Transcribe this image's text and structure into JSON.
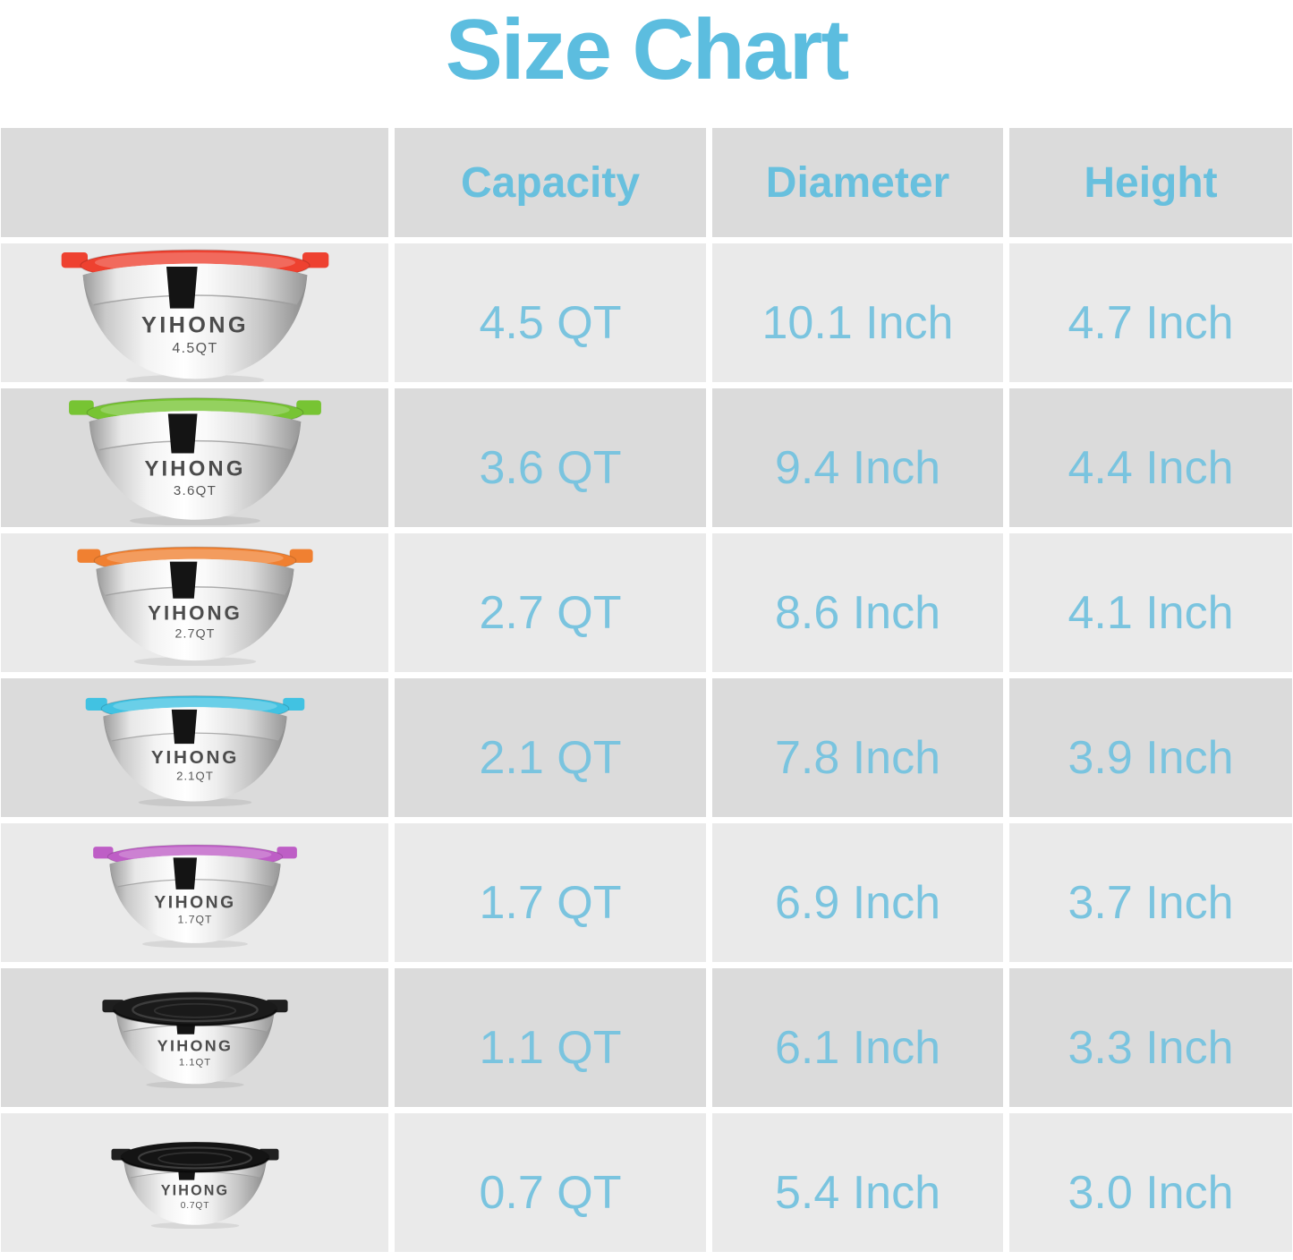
{
  "title": "Size Chart",
  "colors": {
    "accent_blue": "#6AC0DF",
    "row_light": "#EAEAEA",
    "row_dark": "#DBDBDB"
  },
  "table": {
    "columns": [
      "Capacity",
      "Diameter",
      "Height"
    ],
    "rows": [
      {
        "lid_name": "red",
        "lid_color": "#EE4130",
        "lid_style": "flat",
        "brand": "YIHONG",
        "bowl_label": "4.5QT",
        "capacity": "4.5 QT",
        "diameter": "10.1 Inch",
        "height": "4.7 Inch"
      },
      {
        "lid_name": "green",
        "lid_color": "#77C433",
        "lid_style": "flat",
        "brand": "YIHONG",
        "bowl_label": "3.6QT",
        "capacity": "3.6 QT",
        "diameter": "9.4 Inch",
        "height": "4.4 Inch"
      },
      {
        "lid_name": "orange",
        "lid_color": "#F08031",
        "lid_style": "flat",
        "brand": "YIHONG",
        "bowl_label": "2.7QT",
        "capacity": "2.7 QT",
        "diameter": "8.6 Inch",
        "height": "4.1 Inch"
      },
      {
        "lid_name": "blue",
        "lid_color": "#41C2E2",
        "lid_style": "flat",
        "brand": "YIHONG",
        "bowl_label": "2.1QT",
        "capacity": "2.1 QT",
        "diameter": "7.8 Inch",
        "height": "3.9 Inch"
      },
      {
        "lid_name": "purple",
        "lid_color": "#BE5EC6",
        "lid_style": "flat",
        "brand": "YIHONG",
        "bowl_label": "1.7QT",
        "capacity": "1.7 QT",
        "diameter": "6.9 Inch",
        "height": "3.7 Inch"
      },
      {
        "lid_name": "black",
        "lid_color": "#1A1A1A",
        "lid_style": "top",
        "brand": "YIHONG",
        "bowl_label": "1.1QT",
        "capacity": "1.1 QT",
        "diameter": "6.1 Inch",
        "height": "3.3 Inch"
      },
      {
        "lid_name": "black",
        "lid_color": "#141414",
        "lid_style": "top",
        "brand": "YIHONG",
        "bowl_label": "0.7QT",
        "capacity": "0.7 QT",
        "diameter": "5.4 Inch",
        "height": "3.0 Inch"
      }
    ]
  }
}
